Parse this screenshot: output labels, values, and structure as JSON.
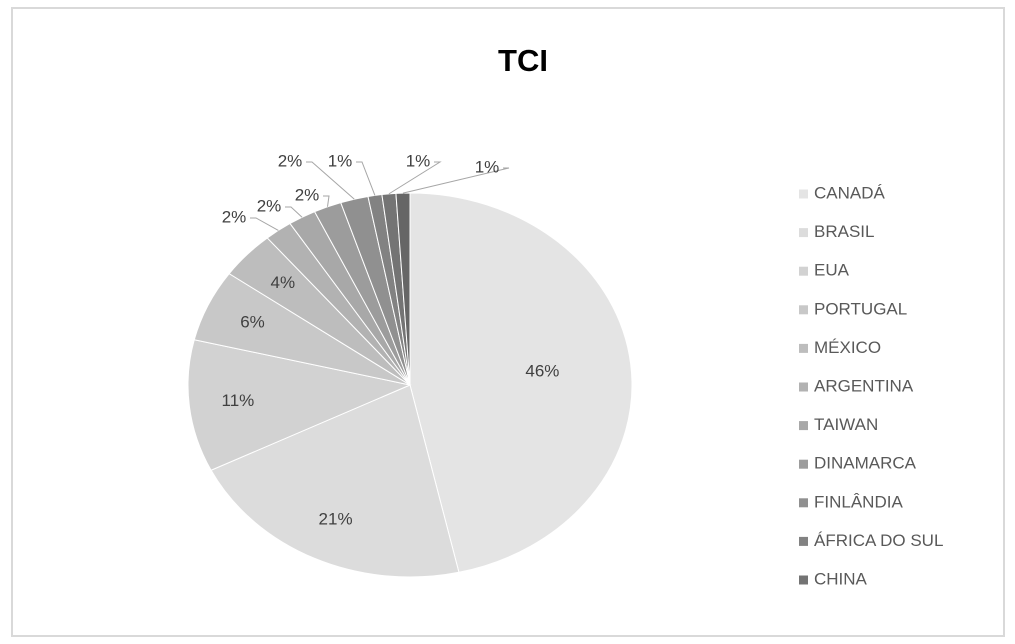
{
  "chart_data": {
    "type": "pie",
    "title": "TCI",
    "categories": [
      "CANADÁ",
      "BRASIL",
      "EUA",
      "PORTUGAL",
      "MÉXICO",
      "ARGENTINA",
      "TAIWAN",
      "DINAMARCA",
      "FINLÂNDIA",
      "ÁFRICA DO SUL",
      "CHINA",
      null
    ],
    "values": [
      46,
      21,
      11,
      6,
      4,
      2,
      2,
      2,
      2,
      1,
      1,
      1
    ],
    "value_labels": [
      "46%",
      "21%",
      "11%",
      "6%",
      "4%",
      "2%",
      "2%",
      "2%",
      "2%",
      "1%",
      "1%",
      "1%"
    ],
    "colors": [
      "#e4e4e4",
      "#dcdcdc",
      "#d2d2d2",
      "#c8c8c8",
      "#bdbdbd",
      "#b2b2b2",
      "#a8a8a8",
      "#9c9c9c",
      "#909090",
      "#828282",
      "#747474",
      "#666666"
    ],
    "legend": "right"
  }
}
